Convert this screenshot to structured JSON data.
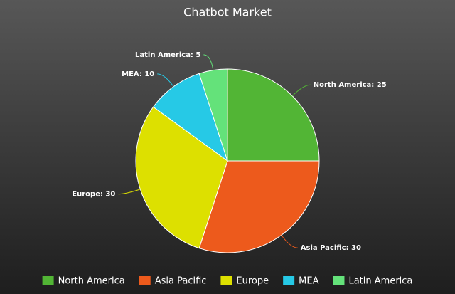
{
  "chart_data": {
    "type": "pie",
    "title": "Chatbot Market",
    "categories": [
      "North America",
      "Asia Pacific",
      "Europe",
      "MEA",
      "Latin America"
    ],
    "values": [
      25,
      30,
      30,
      10,
      5
    ],
    "value_labels": [
      "North America: 25",
      "Asia Pacific: 30",
      "Europe: 30",
      "MEA: 10",
      "Latin America: 5"
    ],
    "colors": [
      "#52b535",
      "#ed5a1c",
      "#dde000",
      "#26c9e6",
      "#64e27a"
    ],
    "legend": "bottom"
  }
}
